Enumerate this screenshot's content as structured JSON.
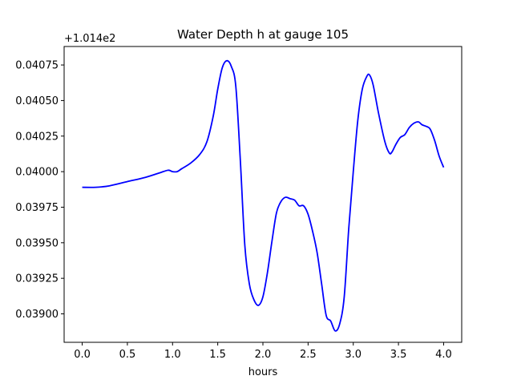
{
  "chart_data": {
    "type": "line",
    "title": "Water Depth h at gauge 105",
    "xlabel": "hours",
    "ylabel": "",
    "y_offset_label": "+1.014e2",
    "xlim": [
      -0.2,
      4.2
    ],
    "ylim": [
      0.0388,
      0.04088
    ],
    "xticks": [
      0.0,
      0.5,
      1.0,
      1.5,
      2.0,
      2.5,
      3.0,
      3.5,
      4.0
    ],
    "xtick_labels": [
      "0.0",
      "0.5",
      "1.0",
      "1.5",
      "2.0",
      "2.5",
      "3.0",
      "3.5",
      "4.0"
    ],
    "yticks": [
      0.039,
      0.03925,
      0.0395,
      0.03975,
      0.04,
      0.04025,
      0.0405,
      0.04075
    ],
    "ytick_labels": [
      "0.03900",
      "0.03925",
      "0.03950",
      "0.03975",
      "0.04000",
      "0.04025",
      "0.04050",
      "0.04075"
    ],
    "grid": false,
    "series": [
      {
        "color": "#0000ff",
        "x": [
          0.0,
          0.15,
          0.3,
          0.5,
          0.7,
          0.85,
          0.95,
          1.0,
          1.05,
          1.1,
          1.2,
          1.3,
          1.38,
          1.45,
          1.5,
          1.55,
          1.6,
          1.65,
          1.7,
          1.75,
          1.8,
          1.85,
          1.9,
          1.95,
          2.0,
          2.05,
          2.1,
          2.15,
          2.2,
          2.25,
          2.3,
          2.35,
          2.4,
          2.45,
          2.5,
          2.55,
          2.6,
          2.65,
          2.7,
          2.75,
          2.8,
          2.85,
          2.9,
          2.95,
          3.0,
          3.05,
          3.1,
          3.15,
          3.18,
          3.22,
          3.28,
          3.35,
          3.4,
          3.43,
          3.47,
          3.52,
          3.57,
          3.62,
          3.67,
          3.72,
          3.76,
          3.8,
          3.85,
          3.9,
          3.95,
          4.0
        ],
        "y": [
          0.03989,
          0.03989,
          0.0399,
          0.03993,
          0.03996,
          0.03999,
          0.04001,
          0.04,
          0.04,
          0.04002,
          0.04006,
          0.04012,
          0.04021,
          0.04039,
          0.04058,
          0.04073,
          0.04078,
          0.04074,
          0.0406,
          0.04008,
          0.03948,
          0.03921,
          0.0391,
          0.03906,
          0.03912,
          0.03929,
          0.03951,
          0.03971,
          0.03979,
          0.03982,
          0.03981,
          0.0398,
          0.03976,
          0.03976,
          0.0397,
          0.03958,
          0.03943,
          0.03921,
          0.03899,
          0.03895,
          0.03888,
          0.03893,
          0.03912,
          0.0396,
          0.04,
          0.04036,
          0.04058,
          0.04067,
          0.04068,
          0.04061,
          0.04041,
          0.04021,
          0.04013,
          0.04014,
          0.04019,
          0.04024,
          0.04026,
          0.04031,
          0.04034,
          0.04035,
          0.04033,
          0.04032,
          0.0403,
          0.04022,
          0.04011,
          0.04003
        ]
      }
    ]
  }
}
